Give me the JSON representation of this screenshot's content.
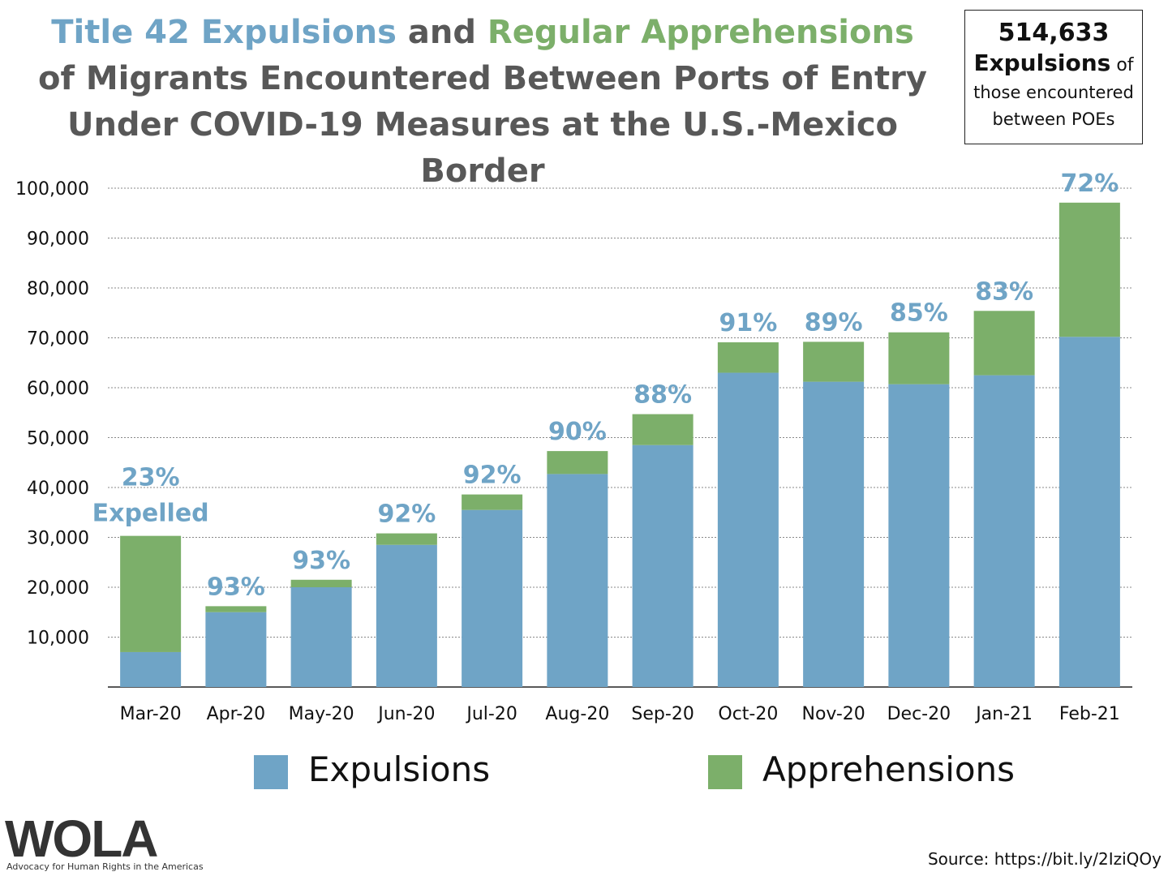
{
  "title": {
    "part1": "Title 42 Expulsions",
    "part2": " and ",
    "part3": "Regular Apprehensions",
    "part4": " of Migrants Encountered Between Ports of Entry Under COVID-19 Measures at the U.S.-Mexico Border"
  },
  "callout": {
    "number": "514,633",
    "word": "Expulsions",
    "of": " of",
    "line3": "those encountered",
    "line4": "between POEs"
  },
  "colors": {
    "expulsions": "#6fa4c6",
    "apprehensions": "#7caf6a",
    "pct_label": "#6fa4c6"
  },
  "chart_data": {
    "type": "bar",
    "stacked": true,
    "categories": [
      "Mar-20",
      "Apr-20",
      "May-20",
      "Jun-20",
      "Jul-20",
      "Aug-20",
      "Sep-20",
      "Oct-20",
      "Nov-20",
      "Dec-20",
      "Jan-21",
      "Feb-21"
    ],
    "series": [
      {
        "name": "Expulsions",
        "values": [
          7000,
          15000,
          20000,
          28500,
          35500,
          42700,
          48500,
          63000,
          61200,
          60700,
          62500,
          70200
        ]
      },
      {
        "name": "Apprehensions",
        "values": [
          23300,
          1200,
          1500,
          2300,
          3100,
          4600,
          6200,
          6100,
          8000,
          10400,
          12900,
          26900
        ]
      }
    ],
    "bar_labels": [
      "23%",
      "93%",
      "93%",
      "92%",
      "92%",
      "90%",
      "88%",
      "91%",
      "89%",
      "85%",
      "83%",
      "72%"
    ],
    "first_bar_note": "Expelled",
    "ylim": [
      0,
      100000
    ],
    "yticks": [
      "10,000",
      "20,000",
      "30,000",
      "40,000",
      "50,000",
      "60,000",
      "70,000",
      "80,000",
      "90,000",
      "100,000"
    ],
    "ytick_values": [
      10000,
      20000,
      30000,
      40000,
      50000,
      60000,
      70000,
      80000,
      90000,
      100000
    ],
    "grid": true,
    "legend_position": "bottom"
  },
  "legend": {
    "expulsions": "Expulsions",
    "apprehensions": "Apprehensions"
  },
  "logo": {
    "text": "WOLA",
    "tagline": "Advocacy for Human Rights in the Americas"
  },
  "source": "Source: https://bit.ly/2IziQOy"
}
